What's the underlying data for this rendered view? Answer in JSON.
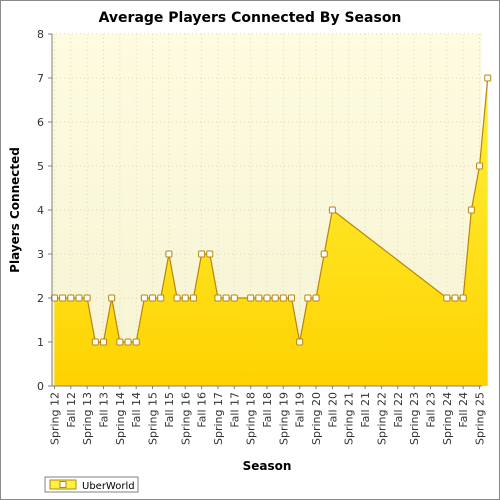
{
  "chart_data": {
    "type": "area",
    "title": "Average Players Connected By Season",
    "xlabel": "Season",
    "ylabel": "Players Connected",
    "ylim": [
      0,
      8
    ],
    "yticks": [
      0,
      1,
      2,
      3,
      4,
      5,
      6,
      7,
      8
    ],
    "grid": true,
    "legend_position": "bottom-left",
    "colors": {
      "fill_top": "#fdf23c",
      "fill_bottom": "#ffd200",
      "line": "#b8860b",
      "plot_bg_top": "#fefbe0",
      "plot_bg_bottom": "#f6f4d4",
      "grid": "#d8d4b0",
      "marker_fill": "#ffffff",
      "marker_stroke": "#b8860b"
    },
    "categories": [
      "Spring 12",
      "Fall 12",
      "Spring 13",
      "Fall 13",
      "Spring 14",
      "Fall 14",
      "Spring 15",
      "Fall 15",
      "Spring 16",
      "Fall 16",
      "Spring 17",
      "Fall 17",
      "Spring 18",
      "Fall 18",
      "Spring 19",
      "Fall 19",
      "Spring 20",
      "Fall 20",
      "Spring 21",
      "Fall 21",
      "Spring 22",
      "Fall 22",
      "Spring 23",
      "Fall 23",
      "Spring 24",
      "Fall 24",
      "Spring 25"
    ],
    "series": [
      {
        "name": "UberWorld",
        "points": [
          [
            0.0,
            2
          ],
          [
            0.5,
            2
          ],
          [
            1.0,
            2
          ],
          [
            1.5,
            2
          ],
          [
            2.0,
            2
          ],
          [
            2.5,
            1
          ],
          [
            3.0,
            1
          ],
          [
            3.5,
            2
          ],
          [
            4.0,
            1
          ],
          [
            4.5,
            1
          ],
          [
            5.0,
            1
          ],
          [
            5.5,
            2
          ],
          [
            6.0,
            2
          ],
          [
            6.5,
            2
          ],
          [
            7.0,
            3
          ],
          [
            7.5,
            2
          ],
          [
            8.0,
            2
          ],
          [
            8.5,
            2
          ],
          [
            9.0,
            3
          ],
          [
            9.5,
            3
          ],
          [
            10.0,
            2
          ],
          [
            10.5,
            2
          ],
          [
            11.0,
            2
          ],
          [
            12.0,
            2
          ],
          [
            12.5,
            2
          ],
          [
            13.0,
            2
          ],
          [
            13.5,
            2
          ],
          [
            14.0,
            2
          ],
          [
            14.5,
            2
          ],
          [
            15.0,
            1
          ],
          [
            15.5,
            2
          ],
          [
            16.0,
            2
          ],
          [
            16.5,
            3
          ],
          [
            17.0,
            4
          ],
          [
            24.0,
            2
          ],
          [
            24.5,
            2
          ],
          [
            25.0,
            2
          ],
          [
            25.5,
            4
          ],
          [
            26.0,
            5
          ],
          [
            26.5,
            7
          ]
        ]
      }
    ]
  }
}
